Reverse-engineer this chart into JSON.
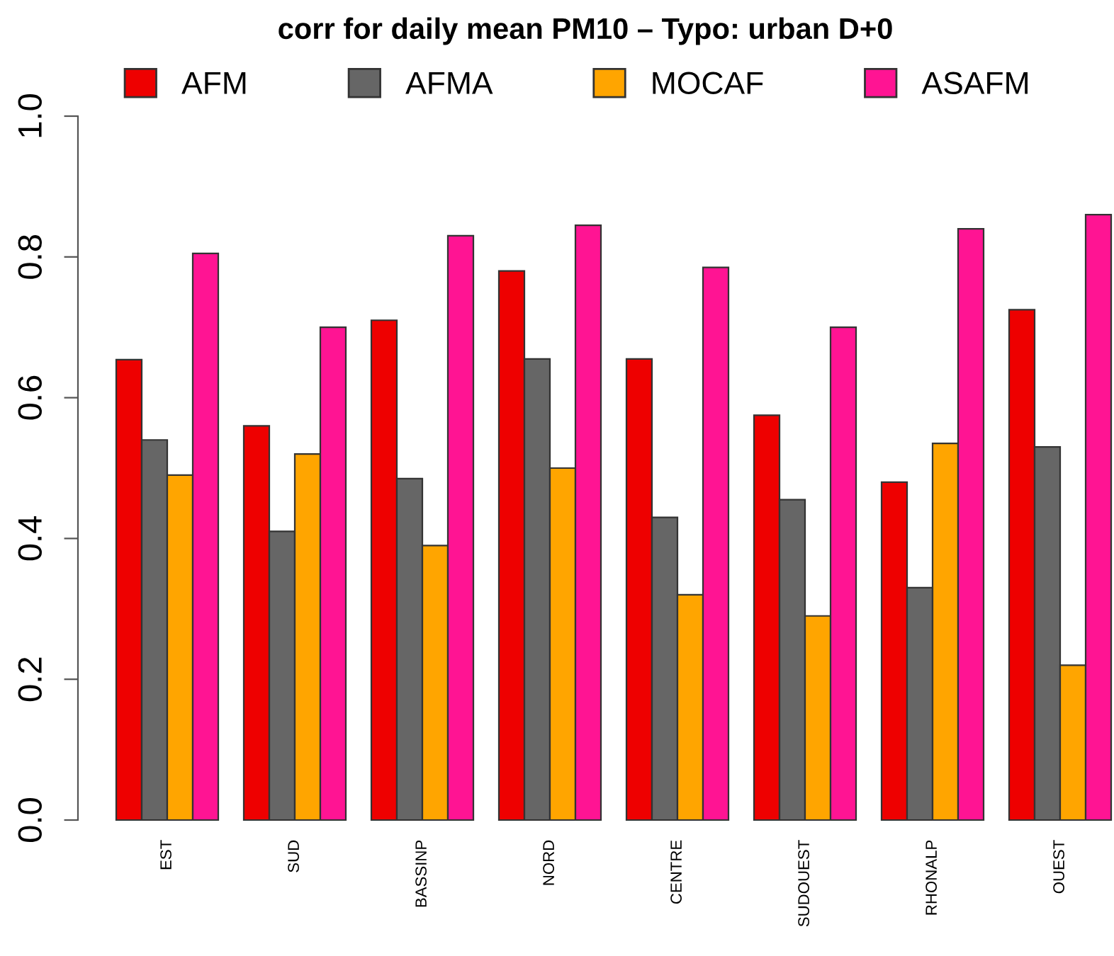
{
  "chart_data": {
    "type": "bar",
    "title": "corr for daily mean PM10 – Typo: urban D+0",
    "categories": [
      "EST",
      "SUD",
      "BASSINP",
      "NORD",
      "CENTRE",
      "SUDOUEST",
      "RHONALP",
      "OUEST"
    ],
    "series": [
      {
        "name": "AFM",
        "color": "#ee0000",
        "values": [
          0.654,
          0.56,
          0.71,
          0.78,
          0.655,
          0.575,
          0.48,
          0.725
        ]
      },
      {
        "name": "AFMA",
        "color": "#666666",
        "values": [
          0.54,
          0.41,
          0.485,
          0.655,
          0.43,
          0.455,
          0.33,
          0.53
        ]
      },
      {
        "name": "MOCAF",
        "color": "#ffa500",
        "values": [
          0.49,
          0.52,
          0.39,
          0.5,
          0.32,
          0.29,
          0.535,
          0.22
        ]
      },
      {
        "name": "ASAFM",
        "color": "#ff1493",
        "values": [
          0.805,
          0.7,
          0.83,
          0.845,
          0.785,
          0.7,
          0.84,
          0.86
        ]
      }
    ],
    "ylim": [
      0,
      1
    ],
    "yticks": [
      {
        "value": 0,
        "label": "0.0"
      },
      0.2,
      0.4,
      0.6,
      0.8,
      {
        "value": 1,
        "label": "1.0"
      }
    ],
    "grid": false,
    "legend": "top"
  }
}
